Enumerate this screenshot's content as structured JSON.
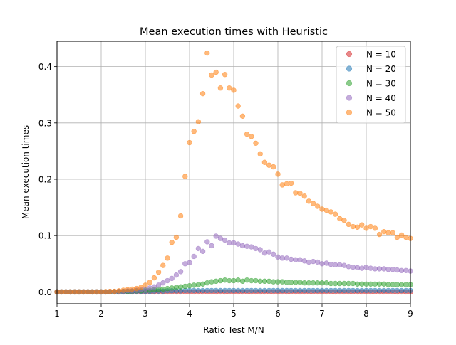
{
  "chart_data": {
    "type": "scatter",
    "title": "Mean execution times with Heuristic",
    "xlabel": "Ratio Test M/N",
    "ylabel": "Mean execution times",
    "xlim": [
      1,
      9
    ],
    "ylim": [
      -0.021,
      0.445
    ],
    "xticks": [
      1,
      2,
      3,
      4,
      5,
      6,
      7,
      8,
      9
    ],
    "yticks": [
      0.0,
      0.1,
      0.2,
      0.3,
      0.4
    ],
    "ytick_labels": [
      "0.0",
      "0.1",
      "0.2",
      "0.3",
      "0.4"
    ],
    "grid": true,
    "legend_position": "top-right",
    "x": [
      1.0,
      1.1,
      1.2,
      1.3,
      1.4,
      1.5,
      1.6,
      1.7,
      1.8,
      1.9,
      2.0,
      2.1,
      2.2,
      2.3,
      2.4,
      2.5,
      2.6,
      2.7,
      2.8,
      2.9,
      3.0,
      3.1,
      3.2,
      3.3,
      3.4,
      3.5,
      3.6,
      3.7,
      3.8,
      3.9,
      4.0,
      4.1,
      4.2,
      4.3,
      4.4,
      4.5,
      4.6,
      4.7,
      4.8,
      4.9,
      5.0,
      5.1,
      5.2,
      5.3,
      5.4,
      5.5,
      5.6,
      5.7,
      5.8,
      5.9,
      6.0,
      6.1,
      6.2,
      6.3,
      6.4,
      6.5,
      6.6,
      6.7,
      6.8,
      6.9,
      7.0,
      7.1,
      7.2,
      7.3,
      7.4,
      7.5,
      7.6,
      7.7,
      7.8,
      7.9,
      8.0,
      8.1,
      8.2,
      8.3,
      8.4,
      8.5,
      8.6,
      8.7,
      8.8,
      8.9,
      9.0
    ],
    "series": [
      {
        "name": "N = 10",
        "color": "#d62728",
        "values": [
          0,
          0,
          0,
          0,
          0,
          0,
          0,
          0,
          0,
          0,
          0,
          0,
          0,
          0,
          0,
          0,
          0,
          0,
          0,
          0,
          0,
          0,
          0,
          0,
          0,
          0,
          0,
          0,
          0,
          0,
          0,
          0,
          0,
          0,
          0,
          0,
          0,
          0,
          0,
          0,
          0,
          0,
          0,
          0,
          0,
          0,
          0,
          0,
          0,
          0,
          0,
          0,
          0,
          0,
          0,
          0,
          0,
          0,
          0,
          0,
          0,
          0,
          0,
          0,
          0,
          0,
          0,
          0,
          0,
          0,
          0,
          0,
          0,
          0,
          0,
          0,
          0,
          0,
          0,
          0,
          0
        ]
      },
      {
        "name": "N = 20",
        "color": "#1f77b4",
        "values": [
          0,
          0,
          0,
          0,
          0,
          0,
          0,
          0,
          0,
          0,
          0,
          0,
          0,
          0,
          0,
          0,
          0.0005,
          0.0005,
          0.0005,
          0.001,
          0.001,
          0.001,
          0.0015,
          0.0015,
          0.0015,
          0.002,
          0.002,
          0.002,
          0.002,
          0.0025,
          0.0025,
          0.0025,
          0.0025,
          0.0025,
          0.0025,
          0.0025,
          0.0025,
          0.0025,
          0.0025,
          0.0025,
          0.0025,
          0.0025,
          0.0025,
          0.0025,
          0.0025,
          0.0025,
          0.0025,
          0.0025,
          0.0025,
          0.0025,
          0.0025,
          0.0025,
          0.0025,
          0.0025,
          0.0025,
          0.0025,
          0.0025,
          0.0025,
          0.0025,
          0.0025,
          0.0025,
          0.0025,
          0.0025,
          0.0025,
          0.0025,
          0.0025,
          0.0025,
          0.0025,
          0.0025,
          0.0025,
          0.0025,
          0.0025,
          0.0025,
          0.0025,
          0.0025,
          0.0025,
          0.0025,
          0.0025,
          0.0025,
          0.0025,
          0.0025
        ]
      },
      {
        "name": "N = 30",
        "color": "#2ca02c",
        "values": [
          0,
          0,
          0,
          0,
          0,
          0,
          0,
          0,
          0,
          0,
          0,
          0,
          0,
          0.0005,
          0.0005,
          0.001,
          0.001,
          0.0015,
          0.002,
          0.002,
          0.003,
          0.003,
          0.004,
          0.005,
          0.005,
          0.006,
          0.007,
          0.008,
          0.009,
          0.01,
          0.011,
          0.012,
          0.013,
          0.014,
          0.016,
          0.018,
          0.019,
          0.02,
          0.021,
          0.02,
          0.02,
          0.021,
          0.019,
          0.021,
          0.02,
          0.02,
          0.019,
          0.019,
          0.019,
          0.018,
          0.018,
          0.018,
          0.017,
          0.017,
          0.017,
          0.017,
          0.016,
          0.016,
          0.016,
          0.016,
          0.016,
          0.016,
          0.015,
          0.015,
          0.015,
          0.015,
          0.015,
          0.015,
          0.014,
          0.014,
          0.014,
          0.014,
          0.014,
          0.014,
          0.014,
          0.013,
          0.013,
          0.013,
          0.013,
          0.013,
          0.013
        ]
      },
      {
        "name": "N = 40",
        "color": "#9467bd",
        "values": [
          0,
          0,
          0,
          0,
          0,
          0,
          0,
          0,
          0,
          0,
          0,
          0,
          0.0005,
          0.0005,
          0.001,
          0.001,
          0.002,
          0.002,
          0.003,
          0.004,
          0.005,
          0.007,
          0.009,
          0.012,
          0.016,
          0.02,
          0.024,
          0.03,
          0.036,
          0.05,
          0.052,
          0.063,
          0.077,
          0.072,
          0.089,
          0.082,
          0.099,
          0.095,
          0.092,
          0.087,
          0.087,
          0.085,
          0.082,
          0.081,
          0.08,
          0.077,
          0.075,
          0.069,
          0.071,
          0.067,
          0.062,
          0.06,
          0.06,
          0.058,
          0.057,
          0.057,
          0.055,
          0.053,
          0.054,
          0.053,
          0.05,
          0.051,
          0.049,
          0.048,
          0.048,
          0.047,
          0.045,
          0.044,
          0.043,
          0.042,
          0.044,
          0.042,
          0.041,
          0.041,
          0.041,
          0.04,
          0.04,
          0.039,
          0.038,
          0.038,
          0.037
        ]
      },
      {
        "name": "N = 50",
        "color": "#ff7f0e",
        "values": [
          0,
          0,
          0,
          0,
          0,
          0,
          0,
          0,
          0,
          0,
          0,
          0.0005,
          0.001,
          0.001,
          0.002,
          0.003,
          0.004,
          0.005,
          0.006,
          0.008,
          0.012,
          0.017,
          0.025,
          0.035,
          0.047,
          0.06,
          0.088,
          0.097,
          0.135,
          0.205,
          0.265,
          0.285,
          0.302,
          0.352,
          0.424,
          0.385,
          0.39,
          0.362,
          0.386,
          0.362,
          0.358,
          0.33,
          0.312,
          0.28,
          0.276,
          0.264,
          0.245,
          0.23,
          0.225,
          0.222,
          0.209,
          0.19,
          0.192,
          0.193,
          0.176,
          0.175,
          0.17,
          0.161,
          0.157,
          0.152,
          0.147,
          0.145,
          0.142,
          0.138,
          0.13,
          0.127,
          0.12,
          0.116,
          0.115,
          0.119,
          0.113,
          0.116,
          0.113,
          0.102,
          0.107,
          0.105,
          0.105,
          0.097,
          0.101,
          0.097,
          0.095
        ]
      }
    ]
  }
}
